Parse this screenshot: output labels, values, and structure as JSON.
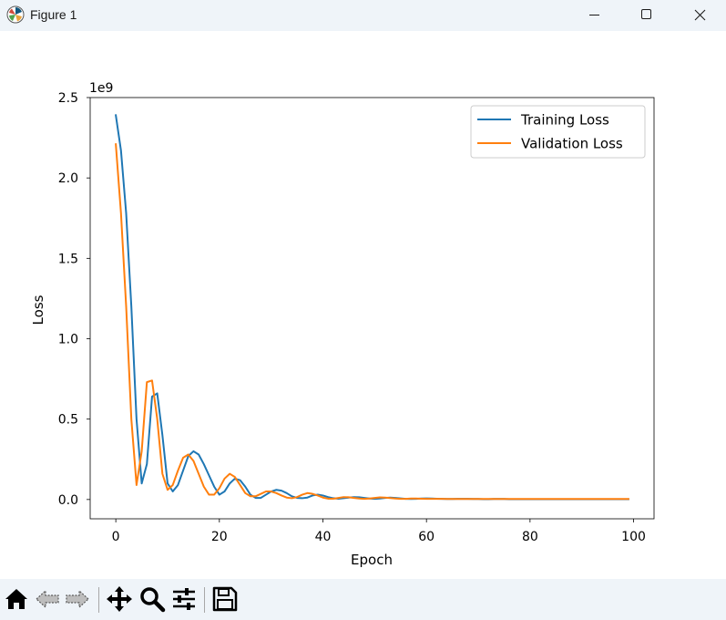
{
  "window": {
    "title": "Figure 1",
    "controls": [
      "minimize",
      "maximize",
      "close"
    ]
  },
  "toolbar": {
    "tools": [
      {
        "name": "home-icon",
        "label": "Home"
      },
      {
        "name": "back-icon",
        "label": "Back"
      },
      {
        "name": "forward-icon",
        "label": "Forward"
      },
      {
        "name": "pan-icon",
        "label": "Pan"
      },
      {
        "name": "zoom-icon",
        "label": "Zoom"
      },
      {
        "name": "configure-subplots-icon",
        "label": "Configure subplots"
      },
      {
        "name": "save-icon",
        "label": "Save"
      }
    ]
  },
  "chart_data": {
    "type": "line",
    "title": "",
    "xlabel": "Epoch",
    "ylabel": "Loss",
    "offset_text": "1e9",
    "xlim": [
      -4.95,
      103.95
    ],
    "ylim": [
      -0.12,
      2.5
    ],
    "xticks": [
      0,
      20,
      40,
      60,
      80,
      100
    ],
    "xtick_labels": [
      "0",
      "20",
      "40",
      "60",
      "80",
      "100"
    ],
    "yticks": [
      0.0,
      0.5,
      1.0,
      1.5,
      2.0,
      2.5
    ],
    "ytick_labels": [
      "0.0",
      "0.5",
      "1.0",
      "1.5",
      "2.0",
      "2.5"
    ],
    "grid": false,
    "legend_position": "top-right",
    "x": [
      0,
      1,
      2,
      3,
      4,
      5,
      6,
      7,
      8,
      9,
      10,
      11,
      12,
      13,
      14,
      15,
      16,
      17,
      18,
      19,
      20,
      21,
      22,
      23,
      24,
      25,
      26,
      27,
      28,
      29,
      30,
      31,
      32,
      33,
      34,
      35,
      36,
      37,
      38,
      39,
      40,
      41,
      42,
      43,
      44,
      45,
      46,
      47,
      48,
      49,
      50,
      51,
      52,
      53,
      54,
      55,
      56,
      57,
      58,
      59,
      60,
      61,
      62,
      63,
      64,
      65,
      66,
      67,
      68,
      69,
      70,
      71,
      72,
      73,
      74,
      75,
      76,
      77,
      78,
      79,
      80,
      81,
      82,
      83,
      84,
      85,
      86,
      87,
      88,
      89,
      90,
      91,
      92,
      93,
      94,
      95,
      96,
      97,
      98,
      99
    ],
    "series": [
      {
        "name": "Training Loss",
        "color": "#1f77b4",
        "values": [
          2.39,
          2.17,
          1.78,
          1.2,
          0.5,
          0.1,
          0.22,
          0.64,
          0.66,
          0.4,
          0.1,
          0.05,
          0.09,
          0.18,
          0.27,
          0.3,
          0.28,
          0.22,
          0.15,
          0.08,
          0.03,
          0.05,
          0.1,
          0.13,
          0.12,
          0.08,
          0.03,
          0.01,
          0.01,
          0.03,
          0.05,
          0.06,
          0.055,
          0.04,
          0.02,
          0.01,
          0.008,
          0.012,
          0.025,
          0.03,
          0.025,
          0.015,
          0.008,
          0.005,
          0.008,
          0.012,
          0.015,
          0.014,
          0.01,
          0.006,
          0.004,
          0.006,
          0.01,
          0.012,
          0.01,
          0.007,
          0.004,
          0.003,
          0.004,
          0.006,
          0.007,
          0.006,
          0.005,
          0.004,
          0.003,
          0.003,
          0.004,
          0.004,
          0.004,
          0.003,
          0.003,
          0.002,
          0.002,
          0.003,
          0.003,
          0.003,
          0.002,
          0.002,
          0.002,
          0.002,
          0.002,
          0.002,
          0.002,
          0.002,
          0.002,
          0.002,
          0.002,
          0.002,
          0.002,
          0.002,
          0.002,
          0.002,
          0.002,
          0.002,
          0.002,
          0.002,
          0.002,
          0.002,
          0.002,
          0.002
        ]
      },
      {
        "name": "Validation Loss",
        "color": "#ff7f0e",
        "values": [
          2.21,
          1.78,
          1.2,
          0.5,
          0.09,
          0.3,
          0.73,
          0.74,
          0.5,
          0.16,
          0.06,
          0.09,
          0.18,
          0.26,
          0.28,
          0.24,
          0.16,
          0.08,
          0.03,
          0.03,
          0.07,
          0.13,
          0.16,
          0.14,
          0.09,
          0.04,
          0.02,
          0.02,
          0.035,
          0.05,
          0.05,
          0.04,
          0.025,
          0.012,
          0.008,
          0.015,
          0.03,
          0.04,
          0.035,
          0.025,
          0.012,
          0.005,
          0.005,
          0.01,
          0.015,
          0.014,
          0.01,
          0.006,
          0.004,
          0.006,
          0.01,
          0.013,
          0.012,
          0.009,
          0.006,
          0.004,
          0.004,
          0.006,
          0.006,
          0.005,
          0.004,
          0.004,
          0.004,
          0.004,
          0.003,
          0.003,
          0.003,
          0.003,
          0.003,
          0.003,
          0.003,
          0.003,
          0.003,
          0.003,
          0.003,
          0.003,
          0.003,
          0.003,
          0.003,
          0.003,
          0.003,
          0.003,
          0.003,
          0.003,
          0.003,
          0.003,
          0.003,
          0.003,
          0.003,
          0.003,
          0.003,
          0.003,
          0.003,
          0.003,
          0.003,
          0.003,
          0.003,
          0.003,
          0.003,
          0.003
        ]
      }
    ]
  }
}
